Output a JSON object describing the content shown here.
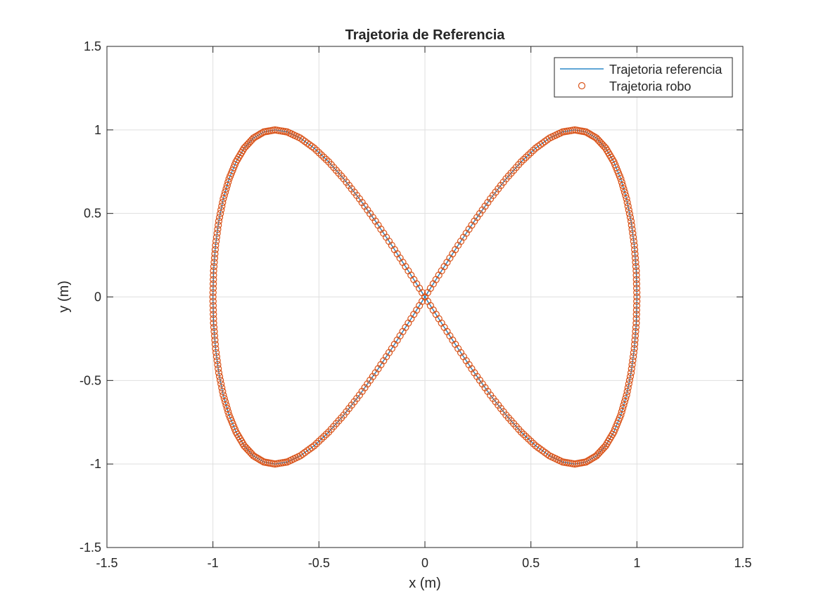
{
  "chart_data": {
    "type": "scatter",
    "title": "Trajetoria de Referencia",
    "xlabel": "x (m)",
    "ylabel": "y (m)",
    "xlim": [
      -1.5,
      1.5
    ],
    "ylim": [
      -1.5,
      1.5
    ],
    "xticks": [
      -1.5,
      -1,
      -0.5,
      0,
      0.5,
      1,
      1.5
    ],
    "yticks": [
      -1.5,
      -1,
      -0.5,
      0,
      0.5,
      1,
      1.5
    ],
    "xtick_labels": [
      "-1.5",
      "-1",
      "-0.5",
      "0",
      "0.5",
      "1",
      "1.5"
    ],
    "ytick_labels": [
      "-1.5",
      "-1",
      "-0.5",
      "0",
      "0.5",
      "1",
      "1.5"
    ],
    "grid": true,
    "legend_position": "top-right",
    "series": [
      {
        "name": "Trajetoria referencia",
        "style": "line",
        "color": "#0072BD",
        "x": [
          0,
          0.0785,
          0.1564,
          0.2334,
          0.309,
          0.3827,
          0.454,
          0.5225,
          0.5878,
          0.6494,
          0.7071,
          0.7604,
          0.809,
          0.8526,
          0.891,
          0.9239,
          0.9511,
          0.9724,
          0.9877,
          0.9969,
          1,
          0.9969,
          0.9877,
          0.9724,
          0.9511,
          0.9239,
          0.891,
          0.8526,
          0.809,
          0.7604,
          0.7071,
          0.6494,
          0.5878,
          0.5225,
          0.454,
          0.3827,
          0.309,
          0.2334,
          0.1564,
          0.0785,
          0,
          -0.0785,
          -0.1564,
          -0.2334,
          -0.309,
          -0.3827,
          -0.454,
          -0.5225,
          -0.5878,
          -0.6494,
          -0.7071,
          -0.7604,
          -0.809,
          -0.8526,
          -0.891,
          -0.9239,
          -0.9511,
          -0.9724,
          -0.9877,
          -0.9969,
          -1,
          -0.9969,
          -0.9877,
          -0.9724,
          -0.9511,
          -0.9239,
          -0.891,
          -0.8526,
          -0.809,
          -0.7604,
          -0.7071,
          -0.6494,
          -0.5878,
          -0.5225,
          -0.454,
          -0.3827,
          -0.309,
          -0.2334,
          -0.1564,
          -0.0785,
          0
        ],
        "y": [
          0,
          0.1564,
          0.309,
          0.454,
          0.5878,
          0.7071,
          0.809,
          0.891,
          0.9511,
          0.9877,
          1,
          0.9877,
          0.9511,
          0.891,
          0.809,
          0.7071,
          0.5878,
          0.454,
          0.309,
          0.1564,
          0,
          -0.1564,
          -0.309,
          -0.454,
          -0.5878,
          -0.7071,
          -0.809,
          -0.891,
          -0.9511,
          -0.9877,
          -1,
          -0.9877,
          -0.9511,
          -0.891,
          -0.809,
          -0.7071,
          -0.5878,
          -0.454,
          -0.309,
          -0.1564,
          0,
          0.1564,
          0.309,
          0.454,
          0.5878,
          0.7071,
          0.809,
          0.891,
          0.9511,
          0.9877,
          1,
          0.9877,
          0.9511,
          0.891,
          0.809,
          0.7071,
          0.5878,
          0.454,
          0.309,
          0.1564,
          0,
          -0.1564,
          -0.309,
          -0.454,
          -0.5878,
          -0.7071,
          -0.809,
          -0.891,
          -0.9511,
          -0.9877,
          -1,
          -0.9877,
          -0.9511,
          -0.891,
          -0.809,
          -0.7071,
          -0.5878,
          -0.454,
          -0.309,
          -0.1564,
          0
        ]
      },
      {
        "name": "Trajetoria robo",
        "style": "markers",
        "marker": "o",
        "color": "#D95319",
        "x": [
          0,
          0.0785,
          0.1564,
          0.2334,
          0.309,
          0.3827,
          0.454,
          0.5225,
          0.5878,
          0.6494,
          0.7071,
          0.7604,
          0.809,
          0.8526,
          0.891,
          0.9239,
          0.9511,
          0.9724,
          0.9877,
          0.9969,
          1,
          0.9969,
          0.9877,
          0.9724,
          0.9511,
          0.9239,
          0.891,
          0.8526,
          0.809,
          0.7604,
          0.7071,
          0.6494,
          0.5878,
          0.5225,
          0.454,
          0.3827,
          0.309,
          0.2334,
          0.1564,
          0.0785,
          0,
          -0.0785,
          -0.1564,
          -0.2334,
          -0.309,
          -0.3827,
          -0.454,
          -0.5225,
          -0.5878,
          -0.6494,
          -0.7071,
          -0.7604,
          -0.809,
          -0.8526,
          -0.891,
          -0.9239,
          -0.9511,
          -0.9724,
          -0.9877,
          -0.9969,
          -1,
          -0.9969,
          -0.9877,
          -0.9724,
          -0.9511,
          -0.9239,
          -0.891,
          -0.8526,
          -0.809,
          -0.7604,
          -0.7071,
          -0.6494,
          -0.5878,
          -0.5225,
          -0.454,
          -0.3827,
          -0.309,
          -0.2334,
          -0.1564,
          -0.0785,
          0
        ],
        "y": [
          0,
          0.1564,
          0.309,
          0.454,
          0.5878,
          0.7071,
          0.809,
          0.891,
          0.9511,
          0.9877,
          1,
          0.9877,
          0.9511,
          0.891,
          0.809,
          0.7071,
          0.5878,
          0.454,
          0.309,
          0.1564,
          0,
          -0.1564,
          -0.309,
          -0.454,
          -0.5878,
          -0.7071,
          -0.809,
          -0.891,
          -0.9511,
          -0.9877,
          -1,
          -0.9877,
          -0.9511,
          -0.891,
          -0.809,
          -0.7071,
          -0.5878,
          -0.454,
          -0.309,
          -0.1564,
          0,
          0.1564,
          0.309,
          0.454,
          0.5878,
          0.7071,
          0.809,
          0.891,
          0.9511,
          0.9877,
          1,
          0.9877,
          0.9511,
          0.891,
          0.809,
          0.7071,
          0.5878,
          0.454,
          0.309,
          0.1564,
          0,
          -0.1564,
          -0.309,
          -0.454,
          -0.5878,
          -0.7071,
          -0.809,
          -0.891,
          -0.9511,
          -0.9877,
          -1,
          -0.9877,
          -0.9511,
          -0.891,
          -0.809,
          -0.7071,
          -0.5878,
          -0.454,
          -0.309,
          -0.1564,
          0
        ]
      }
    ]
  }
}
